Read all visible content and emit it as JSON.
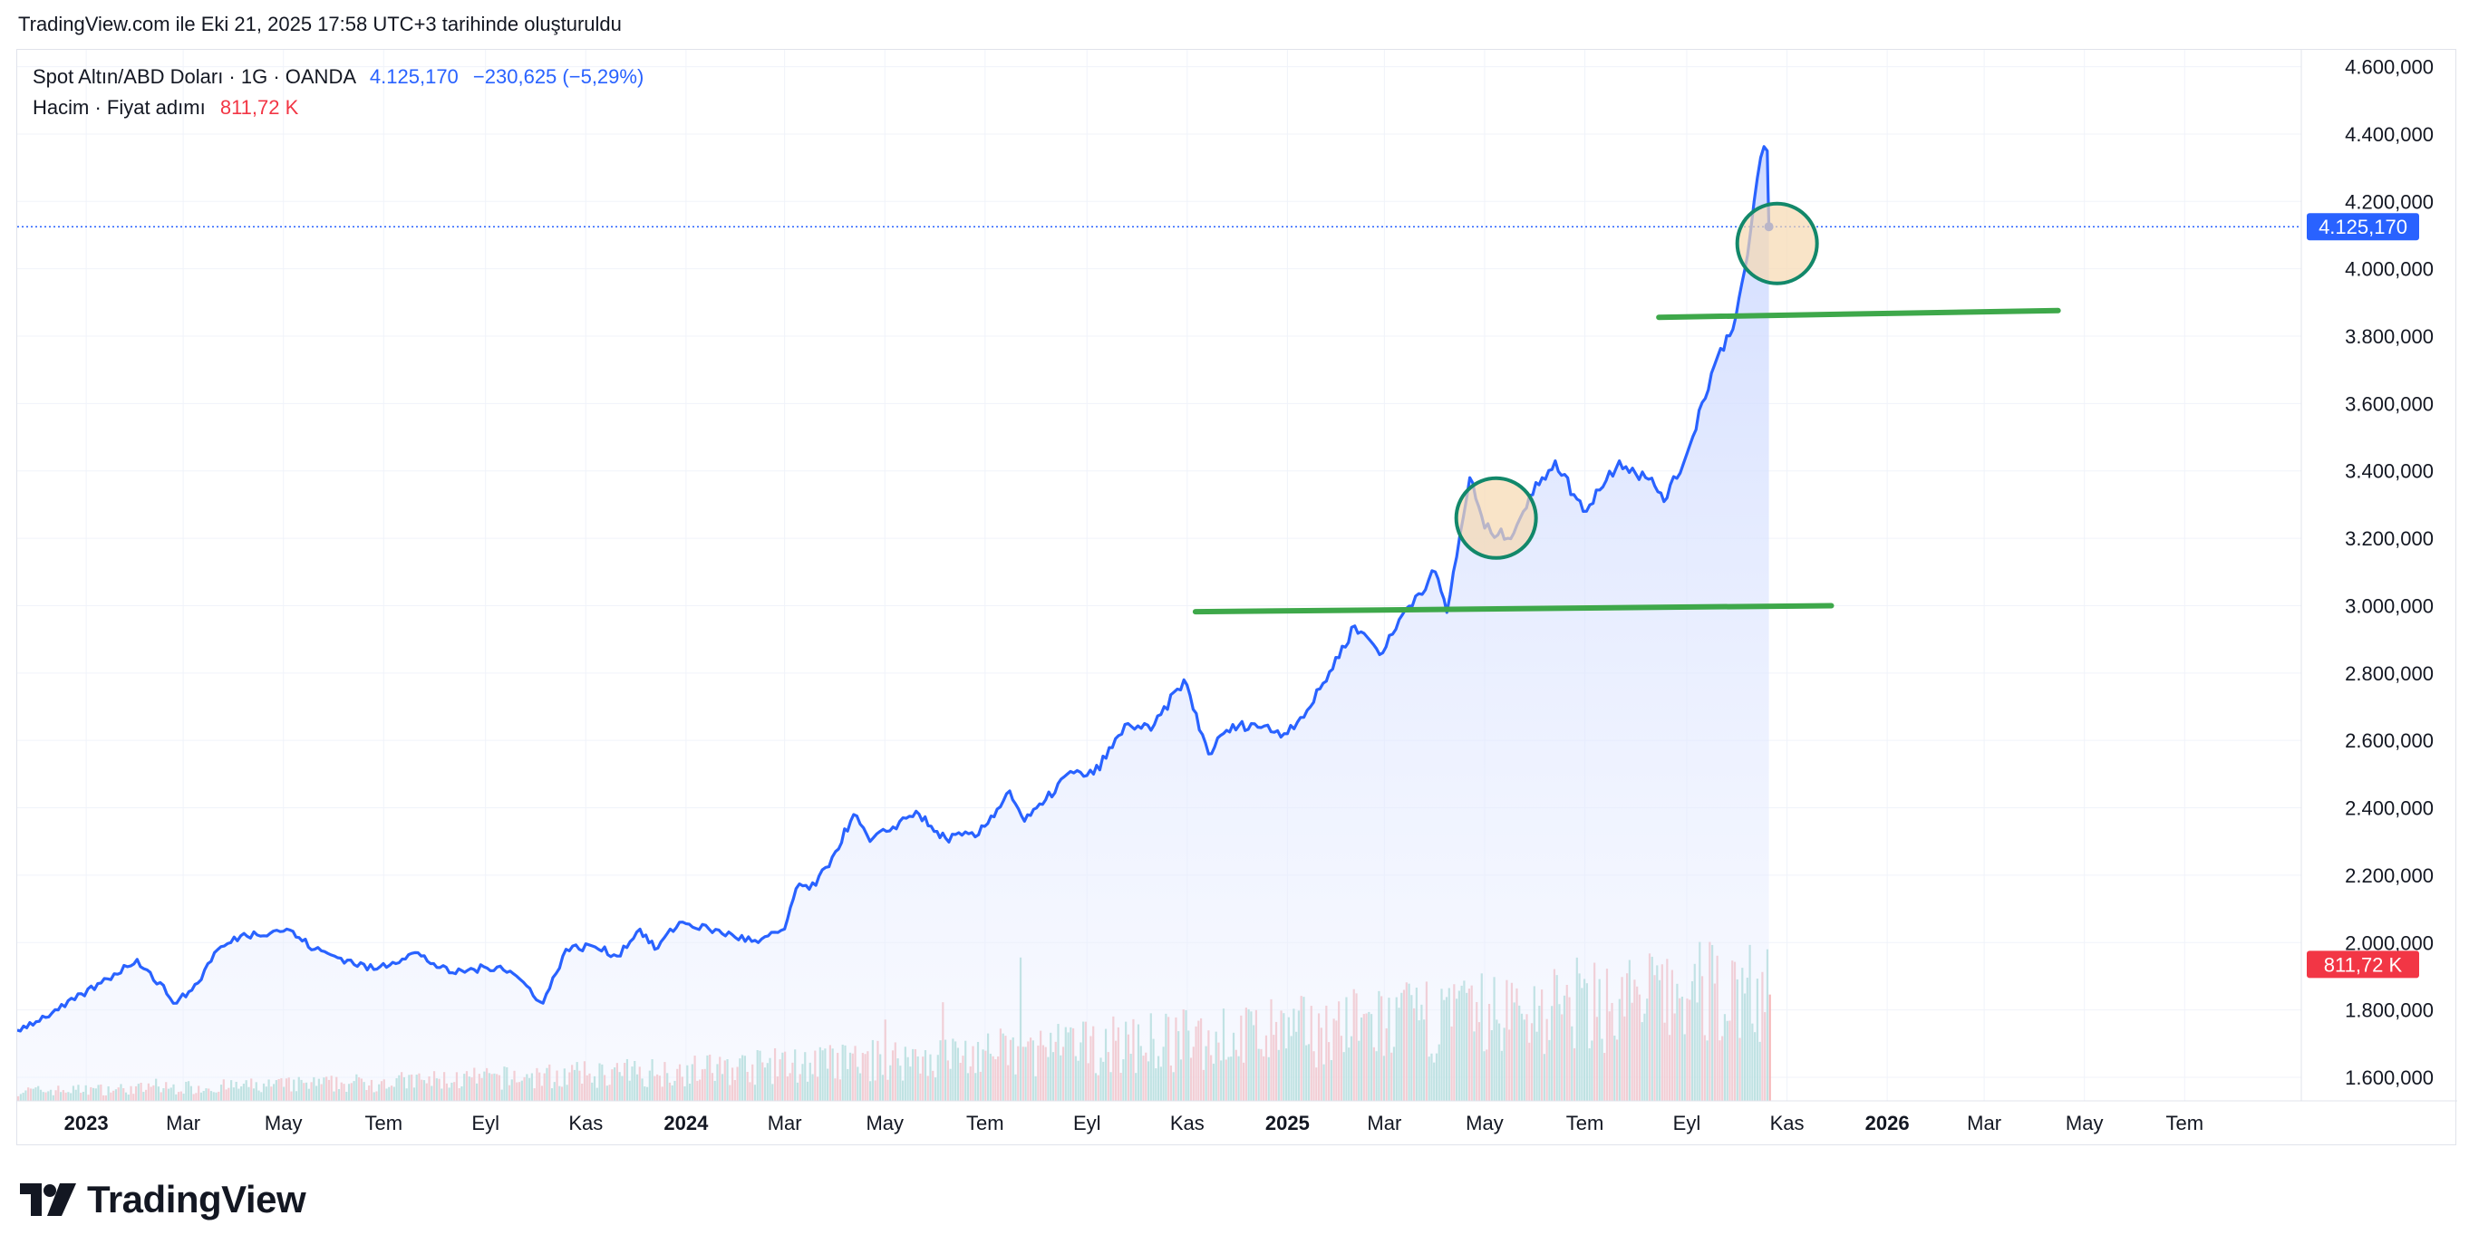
{
  "header": {
    "note": "TradingView.com ile Eki 21, 2025 17:58 UTC+3 tarihinde oluşturuldu"
  },
  "legend": {
    "symbol": "Spot Altın/ABD Doları · 1G · OANDA",
    "price": "4.125,170",
    "change": "−230,625 (−5,29%)",
    "volume_label": "Hacim · Fiyat adımı",
    "volume_value": "811,72 K"
  },
  "brand": {
    "name": "TradingView"
  },
  "colors": {
    "line": "#2962ff",
    "fill": "#dbe4ff",
    "support": "#3ea84a",
    "circle_stroke": "#12886a",
    "circle_fill": "#f7d9b0",
    "vol_up": "#8fd1c7",
    "vol_down": "#f5a8aa"
  },
  "chart_data": {
    "type": "area",
    "y_axis": {
      "ticks": [
        "4.600,000",
        "4.400,000",
        "4.200,000",
        "4.000,000",
        "3.800,000",
        "3.600,000",
        "3.400,000",
        "3.200,000",
        "3.000,000",
        "2.800,000",
        "2.600,000",
        "2.400,000",
        "2.200,000",
        "2.000,000",
        "1.800,000",
        "1.600,000"
      ],
      "tick_values": [
        4600,
        4400,
        4200,
        4000,
        3800,
        3600,
        3400,
        3200,
        3000,
        2800,
        2600,
        2400,
        2200,
        2000,
        1800,
        1600
      ],
      "ylim": [
        1530,
        4650
      ]
    },
    "x_axis": {
      "ticks": [
        "2023",
        "Mar",
        "May",
        "Tem",
        "Eyl",
        "Kas",
        "2024",
        "Mar",
        "May",
        "Tem",
        "Eyl",
        "Kas",
        "2025",
        "Mar",
        "May",
        "Tem",
        "Eyl",
        "Kas",
        "2026",
        "Mar",
        "May",
        "Tem"
      ],
      "tick_dates": [
        "2023-01-01",
        "2023-03-01",
        "2023-05-01",
        "2023-07-01",
        "2023-09-01",
        "2023-11-01",
        "2024-01-01",
        "2024-03-01",
        "2024-05-01",
        "2024-07-01",
        "2024-09-01",
        "2024-11-01",
        "2025-01-01",
        "2025-03-01",
        "2025-05-01",
        "2025-07-01",
        "2025-09-01",
        "2025-11-01",
        "2026-01-01",
        "2026-03-01",
        "2026-05-01",
        "2026-07-01"
      ],
      "bold_ticks": [
        "2023",
        "2024",
        "2025",
        "2026"
      ],
      "xlim": [
        "2022-11-20",
        "2026-09-10"
      ]
    },
    "series": [
      {
        "x": [
          "2022-11-20",
          "2022-12-15",
          "2023-01-10",
          "2023-02-01",
          "2023-02-25",
          "2023-03-10",
          "2023-03-20",
          "2023-04-05",
          "2023-05-03",
          "2023-05-20",
          "2023-06-01",
          "2023-06-25",
          "2023-07-20",
          "2023-08-10",
          "2023-08-25",
          "2023-09-10",
          "2023-09-20",
          "2023-10-06",
          "2023-10-20",
          "2023-11-05",
          "2023-11-20",
          "2023-12-04",
          "2023-12-13",
          "2023-12-28",
          "2024-01-15",
          "2024-02-14",
          "2024-03-01",
          "2024-03-08",
          "2024-03-20",
          "2024-04-01",
          "2024-04-12",
          "2024-04-22",
          "2024-05-02",
          "2024-05-20",
          "2024-05-31",
          "2024-06-07",
          "2024-06-27",
          "2024-07-16",
          "2024-07-25",
          "2024-08-05",
          "2024-08-20",
          "2024-09-05",
          "2024-09-26",
          "2024-10-10",
          "2024-10-30",
          "2024-11-14",
          "2024-11-25",
          "2024-12-10",
          "2024-12-30",
          "2025-01-15",
          "2025-02-11",
          "2025-02-28",
          "2025-03-14",
          "2025-04-01",
          "2025-04-08",
          "2025-04-22",
          "2025-05-01",
          "2025-05-15",
          "2025-06-05",
          "2025-06-13",
          "2025-06-30",
          "2025-07-22",
          "2025-08-07",
          "2025-08-20",
          "2025-09-01",
          "2025-09-16",
          "2025-10-01",
          "2025-10-08",
          "2025-10-16",
          "2025-10-20",
          "2025-10-21"
        ],
        "values": [
          1740,
          1800,
          1880,
          1950,
          1820,
          1880,
          1970,
          2020,
          2040,
          1980,
          1960,
          1920,
          1970,
          1910,
          1920,
          1930,
          1900,
          1820,
          1980,
          1990,
          1960,
          2040,
          1980,
          2060,
          2040,
          2000,
          2040,
          2160,
          2170,
          2270,
          2380,
          2300,
          2330,
          2390,
          2330,
          2310,
          2320,
          2450,
          2360,
          2410,
          2500,
          2500,
          2650,
          2630,
          2780,
          2560,
          2630,
          2650,
          2620,
          2700,
          2940,
          2860,
          2990,
          3100,
          2980,
          3380,
          3230,
          3200,
          3380,
          3430,
          3280,
          3430,
          3380,
          3320,
          3450,
          3690,
          3860,
          4040,
          4330,
          4350,
          4125
        ]
      }
    ],
    "annotations": [
      {
        "type": "support-line",
        "x": [
          "2024-11-06",
          "2025-11-28"
        ],
        "y": [
          2982,
          3000
        ]
      },
      {
        "type": "support-line",
        "x": [
          "2025-08-15",
          "2026-04-15"
        ],
        "y": [
          3856,
          3876
        ]
      },
      {
        "type": "circle",
        "x": "2025-05-08",
        "y": 3260
      },
      {
        "type": "circle",
        "x": "2025-10-26",
        "y": 4075
      }
    ],
    "volume_bars": {
      "x_start": "2022-11-20",
      "x_end": "2025-10-21",
      "values": []
    }
  }
}
